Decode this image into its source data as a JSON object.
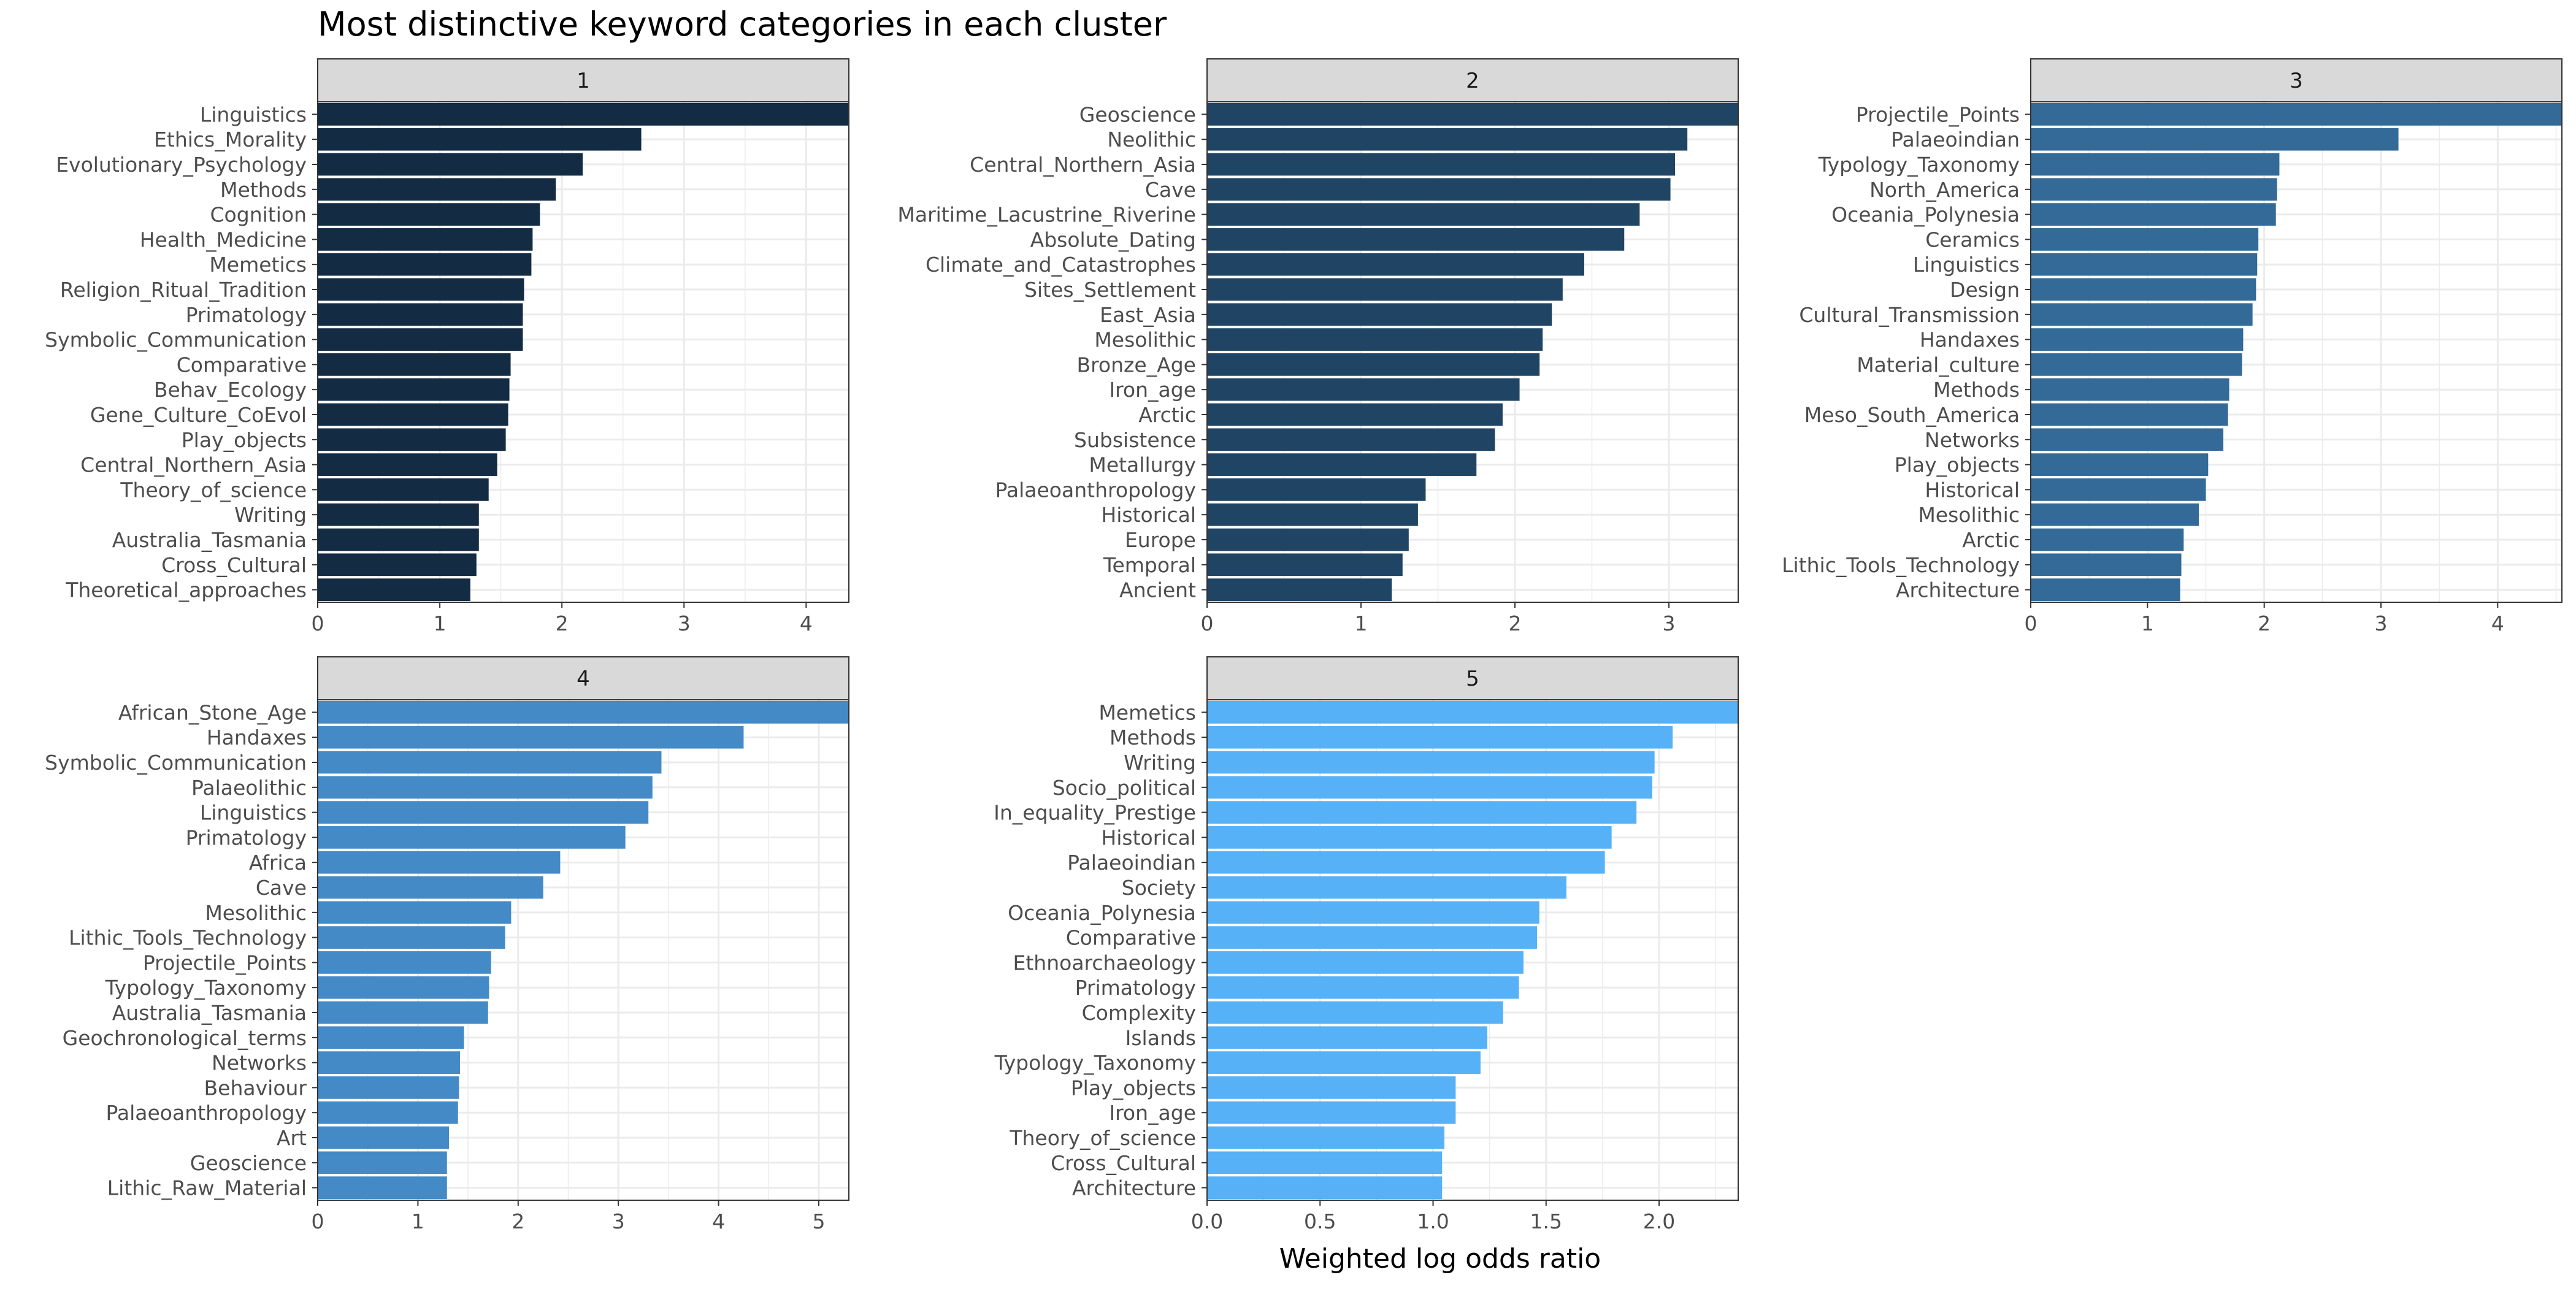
{
  "chart_data": {
    "type": "bar",
    "orientation": "horizontal",
    "title": "Most distinctive keyword categories in each cluster",
    "xlabel": "Weighted log odds ratio",
    "ylabel": "",
    "grid": true,
    "panels": [
      {
        "label": "1",
        "color": "#132b43",
        "xlim": [
          0,
          4.35
        ],
        "ticks": [
          "0",
          "1",
          "2",
          "3",
          "4"
        ],
        "categories": [
          "Linguistics",
          "Ethics_Morality",
          "Evolutionary_Psychology",
          "Methods",
          "Cognition",
          "Health_Medicine",
          "Memetics",
          "Religion_Ritual_Tradition",
          "Primatology",
          "Symbolic_Communication",
          "Comparative",
          "Behav_Ecology",
          "Gene_Culture_CoEvol",
          "Play_objects",
          "Central_Northern_Asia",
          "Theory_of_science",
          "Writing",
          "Australia_Tasmania",
          "Cross_Cultural",
          "Theoretical_approaches"
        ],
        "values": [
          4.35,
          2.65,
          2.17,
          1.95,
          1.82,
          1.76,
          1.75,
          1.69,
          1.68,
          1.68,
          1.58,
          1.57,
          1.56,
          1.54,
          1.47,
          1.4,
          1.32,
          1.32,
          1.3,
          1.25
        ]
      },
      {
        "label": "2",
        "color": "#204564",
        "xlim": [
          0,
          3.45
        ],
        "ticks": [
          "0",
          "1",
          "2",
          "3"
        ],
        "categories": [
          "Geoscience",
          "Neolithic",
          "Central_Northern_Asia",
          "Cave",
          "Maritime_Lacustrine_Riverine",
          "Absolute_Dating",
          "Climate_and_Catastrophes",
          "Sites_Settlement",
          "East_Asia",
          "Mesolithic",
          "Bronze_Age",
          "Iron_age",
          "Arctic",
          "Subsistence",
          "Metallurgy",
          "Palaeoanthropology",
          "Historical",
          "Europe",
          "Temporal",
          "Ancient"
        ],
        "values": [
          3.45,
          3.12,
          3.04,
          3.01,
          2.81,
          2.71,
          2.45,
          2.31,
          2.24,
          2.18,
          2.16,
          2.03,
          1.92,
          1.87,
          1.75,
          1.42,
          1.37,
          1.31,
          1.27,
          1.2
        ]
      },
      {
        "label": "3",
        "color": "#336a98",
        "xlim": [
          0,
          4.55
        ],
        "ticks": [
          "0",
          "1",
          "2",
          "3",
          "4"
        ],
        "categories": [
          "Projectile_Points",
          "Palaeoindian",
          "Typology_Taxonomy",
          "North_America",
          "Oceania_Polynesia",
          "Ceramics",
          "Linguistics",
          "Design",
          "Cultural_Transmission",
          "Handaxes",
          "Material_culture",
          "Methods",
          "Meso_South_America",
          "Networks",
          "Play_objects",
          "Historical",
          "Mesolithic",
          "Arctic",
          "Lithic_Tools_Technology",
          "Architecture"
        ],
        "values": [
          4.55,
          3.15,
          2.13,
          2.11,
          2.1,
          1.95,
          1.94,
          1.93,
          1.9,
          1.82,
          1.81,
          1.7,
          1.69,
          1.65,
          1.52,
          1.5,
          1.44,
          1.31,
          1.29,
          1.28
        ]
      },
      {
        "label": "4",
        "color": "#448ac6",
        "xlim": [
          0,
          5.3
        ],
        "ticks": [
          "0",
          "1",
          "2",
          "3",
          "4",
          "5"
        ],
        "categories": [
          "African_Stone_Age",
          "Handaxes",
          "Symbolic_Communication",
          "Palaeolithic",
          "Linguistics",
          "Primatology",
          "Africa",
          "Cave",
          "Mesolithic",
          "Lithic_Tools_Technology",
          "Projectile_Points",
          "Typology_Taxonomy",
          "Australia_Tasmania",
          "Geochronological_terms",
          "Networks",
          "Behaviour",
          "Palaeoanthropology",
          "Art",
          "Geoscience",
          "Lithic_Raw_Material"
        ],
        "values": [
          5.3,
          4.25,
          3.43,
          3.34,
          3.3,
          3.07,
          2.42,
          2.25,
          1.93,
          1.87,
          1.73,
          1.71,
          1.7,
          1.46,
          1.42,
          1.41,
          1.4,
          1.31,
          1.29,
          1.29
        ]
      },
      {
        "label": "5",
        "color": "#56b1f7",
        "xlim": [
          0,
          2.35
        ],
        "ticks": [
          "0.0",
          "0.5",
          "1.0",
          "1.5",
          "2.0"
        ],
        "categories": [
          "Memetics",
          "Methods",
          "Writing",
          "Socio_political",
          "In_equality_Prestige",
          "Historical",
          "Palaeoindian",
          "Society",
          "Oceania_Polynesia",
          "Comparative",
          "Ethnoarchaeology",
          "Primatology",
          "Complexity",
          "Islands",
          "Typology_Taxonomy",
          "Play_objects",
          "Iron_age",
          "Theory_of_science",
          "Cross_Cultural",
          "Architecture"
        ],
        "values": [
          2.35,
          2.06,
          1.98,
          1.97,
          1.9,
          1.79,
          1.76,
          1.59,
          1.47,
          1.46,
          1.4,
          1.38,
          1.31,
          1.24,
          1.21,
          1.1,
          1.1,
          1.05,
          1.04,
          1.04
        ]
      }
    ]
  }
}
